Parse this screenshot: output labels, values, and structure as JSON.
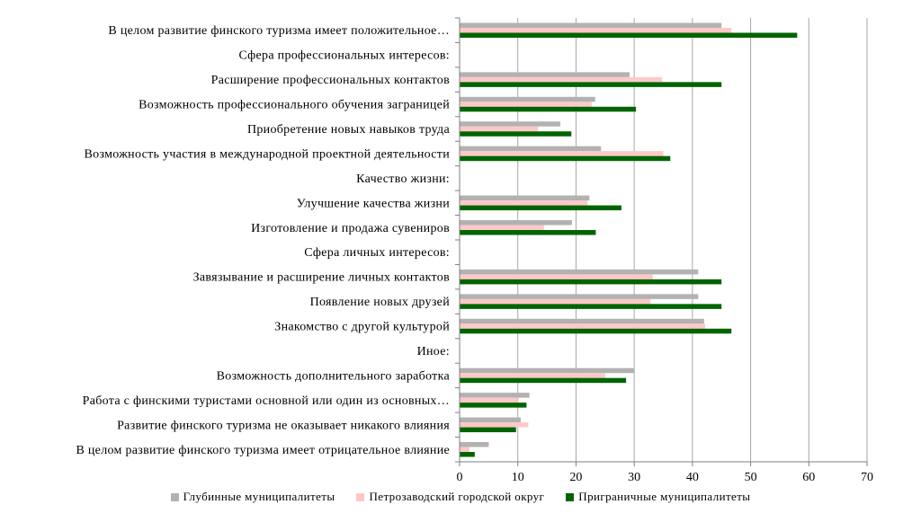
{
  "chart_data": {
    "type": "bar",
    "orientation": "horizontal",
    "title": "",
    "xlabel": "",
    "ylabel": "",
    "xlim": [
      0,
      70
    ],
    "x_ticks": [
      0,
      10,
      20,
      30,
      40,
      50,
      60,
      70
    ],
    "grid": "vertical",
    "legend_position": "bottom",
    "categories": [
      "В целом развитие финского туризма имеет положительное…",
      "Сфера профессиональных интересов:",
      "Расширение профессиональных контактов",
      "Возможность профессионального обучения заграницей",
      "Приобретение новых навыков труда",
      "Возможность участия в международной проектной деятельности",
      "Качество жизни:",
      "Улучшение качества жизни",
      "Изготовление и продажа сувениров",
      "Сфера личных интересов:",
      "Завязывание и расширение личных контактов",
      "Появление новых друзей",
      "Знакомство с другой культурой",
      "Иное:",
      "Возможность дополнительного заработка",
      "Работа с финскими туристами основной или один из основных…",
      "Развитие финского туризма не оказывает никакого влияния",
      "В целом развитие финского туризма имеет отрицательное влияние"
    ],
    "series": [
      {
        "name": "Глубинные муниципалитеты",
        "color": "#b2b2b2",
        "values": [
          45,
          null,
          29.2,
          23.3,
          17.3,
          24.3,
          null,
          22.3,
          19.3,
          null,
          41,
          41,
          42,
          null,
          30,
          12,
          10.5,
          5
        ]
      },
      {
        "name": "Петрозаводский городской округ",
        "color": "#ffc8c8",
        "values": [
          46.7,
          null,
          34.8,
          22.7,
          13.5,
          35,
          null,
          22,
          14.5,
          null,
          33.2,
          32.8,
          42.2,
          null,
          25,
          10,
          11.8,
          1.7
        ]
      },
      {
        "name": "Приграничные муниципалитеты",
        "color": "#006400",
        "values": [
          58,
          null,
          45,
          30.3,
          19.2,
          36.2,
          null,
          27.8,
          23.4,
          null,
          45,
          45,
          46.7,
          null,
          28.6,
          11.5,
          9.7,
          2.6
        ]
      }
    ]
  }
}
